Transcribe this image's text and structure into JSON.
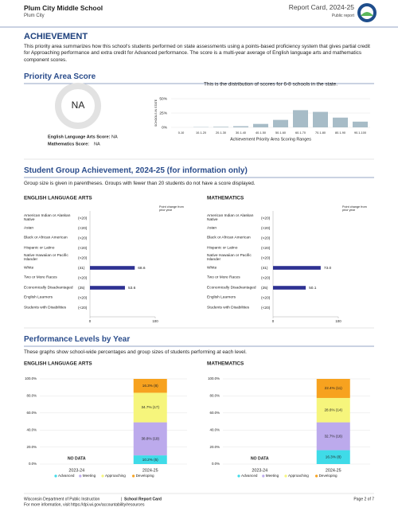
{
  "header": {
    "school": "Plum City Middle School",
    "district": "Plum City",
    "report": "Report Card, 2024-25",
    "access": "Public report"
  },
  "achievement": {
    "title": "ACHIEVEMENT",
    "text": "This priority area summarizes how this school's students performed on state assessments using a points-based proficiency system that gives partial credit for Approaching performance and extra credit for Advanced performance. The score is a multi-year average of English language arts and mathematics component scores."
  },
  "priority": {
    "title": "Priority Area Score",
    "score": "NA",
    "ela_label": "English Language Arts Score:",
    "ela_score": "NA",
    "math_label": "Mathematics Score:",
    "math_score": "NA"
  },
  "group_section": {
    "title": "Student Group Achievement, 2024-25 (for information only)",
    "note": "Group size is given in parentheses. Groups with fewer than 20 students do not have a score displayed."
  },
  "levels_section": {
    "title": "Performance Levels by Year",
    "note": "These graphs show school-wide percentages and group sizes of students performing at each level."
  },
  "footer": {
    "org": "Wisconsin Department of Public Instruction",
    "report": "School Report Card",
    "link": "For more information, visit https://dpi.wi.gov/accountability/resources",
    "page": "Page 2 of 7"
  },
  "chart_data": [
    {
      "type": "bar",
      "subtitle": "This is the distribution of scores for 6-8 schools in the state.",
      "ylabel": "SCHOOLS IN STATE",
      "xlabel": "Achievement Priority Area Scoring Ranges",
      "categories": [
        "0-10",
        "10.1-20",
        "20.1-30",
        "30.1-40",
        "40.1-50",
        "50.1-60",
        "60.1-70",
        "70.1-80",
        "80.1-90",
        "90.1-100"
      ],
      "values": [
        0,
        0.5,
        1,
        2,
        6,
        13,
        30,
        27,
        17,
        10
      ],
      "color": "#a7bcc7",
      "grid": true,
      "ylim": [
        0,
        50
      ],
      "yticks": [
        {
          "value": 0,
          "label": "0%"
        },
        {
          "value": 25,
          "label": "25%"
        },
        {
          "value": 50,
          "label": "50%"
        }
      ]
    },
    {
      "type": "hbar",
      "title": "ENGLISH LANGUAGE ARTS",
      "value_header": "Point change from prior year",
      "categories": [
        "American Indian or Alaskan Native",
        "Asian",
        "Black or African American",
        "Hispanic or Latino",
        "Native Hawaiian or Pacific Islander",
        "White",
        "Two or More Races",
        "Economically Disadvantaged",
        "English Learners",
        "Students with Disabilities"
      ],
      "group_sizes": [
        "(<20)",
        "(<20)",
        "(<20)",
        "(<20)",
        "(<20)",
        "(41)",
        "(<20)",
        "(25)",
        "(<20)",
        "(<20)"
      ],
      "values": [
        null,
        null,
        null,
        null,
        null,
        68.6,
        null,
        53.6,
        null,
        null
      ],
      "color": "#2e3192",
      "xlim": [
        0,
        100
      ],
      "xticks": [
        0,
        100
      ]
    },
    {
      "type": "hbar",
      "title": "MATHEMATICS",
      "value_header": "Point change from prior year",
      "categories": [
        "American Indian or Alaskan Native",
        "Asian",
        "Black or African American",
        "Hispanic or Latino",
        "Native Hawaiian or Pacific Islander",
        "White",
        "Two or More Races",
        "Economically Disadvantaged",
        "English Learners",
        "Students with Disabilities"
      ],
      "group_sizes": [
        "(<20)",
        "(<20)",
        "(<20)",
        "(<20)",
        "(<20)",
        "(41)",
        "(<20)",
        "(25)",
        "(<20)",
        "(<20)"
      ],
      "values": [
        null,
        null,
        null,
        null,
        null,
        73,
        null,
        50.1,
        null,
        null
      ],
      "value_labels": [
        null,
        null,
        null,
        null,
        null,
        "73.0",
        null,
        "50.1",
        null,
        null
      ],
      "color": "#2e3192",
      "xlim": [
        0,
        100
      ],
      "xticks": [
        0,
        100
      ]
    },
    {
      "type": "stacked",
      "title": "ENGLISH LANGUAGE ARTS",
      "categories": [
        "2023-24",
        "2024-25"
      ],
      "no_data": "NO DATA",
      "ylim": [
        0,
        100
      ],
      "yticks": [
        {
          "value": 0,
          "label": "0.0%"
        },
        {
          "value": 20,
          "label": "20.0%"
        },
        {
          "value": 40,
          "label": "40.0%"
        },
        {
          "value": 60,
          "label": "60.0%"
        },
        {
          "value": 80,
          "label": "80.0%"
        },
        {
          "value": 100,
          "label": "100.0%"
        }
      ],
      "series": [
        {
          "name": "Advanced",
          "color": "#3fdbe8",
          "values": [
            null,
            10.2
          ],
          "value_labels": [
            null,
            "10.2% (5)"
          ]
        },
        {
          "name": "Meeting",
          "color": "#bcaaec",
          "values": [
            null,
            38.8
          ],
          "value_labels": [
            null,
            "38.8% (19)"
          ]
        },
        {
          "name": "Approaching",
          "color": "#f6f57c",
          "values": [
            null,
            34.7
          ],
          "value_labels": [
            null,
            "34.7% (17)"
          ]
        },
        {
          "name": "Developing",
          "color": "#f7a21f",
          "values": [
            null,
            16.3
          ],
          "value_labels": [
            null,
            "16.3% (8)"
          ]
        }
      ]
    },
    {
      "type": "stacked",
      "title": "MATHEMATICS",
      "categories": [
        "2023-24",
        "2024-25"
      ],
      "no_data": "NO DATA",
      "ylim": [
        0,
        100
      ],
      "yticks": [
        {
          "value": 0,
          "label": "0.0%"
        },
        {
          "value": 20,
          "label": "20.0%"
        },
        {
          "value": 40,
          "label": "40.0%"
        },
        {
          "value": 60,
          "label": "60.0%"
        },
        {
          "value": 80,
          "label": "80.0%"
        },
        {
          "value": 100,
          "label": "100.0%"
        }
      ],
      "series": [
        {
          "name": "Advanced",
          "color": "#3fdbe8",
          "values": [
            null,
            16.3
          ],
          "value_labels": [
            null,
            "16.3% (8)"
          ]
        },
        {
          "name": "Meeting",
          "color": "#bcaaec",
          "values": [
            null,
            32.7
          ],
          "value_labels": [
            null,
            "32.7% (16)"
          ]
        },
        {
          "name": "Approaching",
          "color": "#f6f57c",
          "values": [
            null,
            28.6
          ],
          "value_labels": [
            null,
            "28.6% (14)"
          ]
        },
        {
          "name": "Developing",
          "color": "#f7a21f",
          "values": [
            null,
            22.4
          ],
          "value_labels": [
            null,
            "22.4% (11)"
          ]
        }
      ]
    }
  ]
}
